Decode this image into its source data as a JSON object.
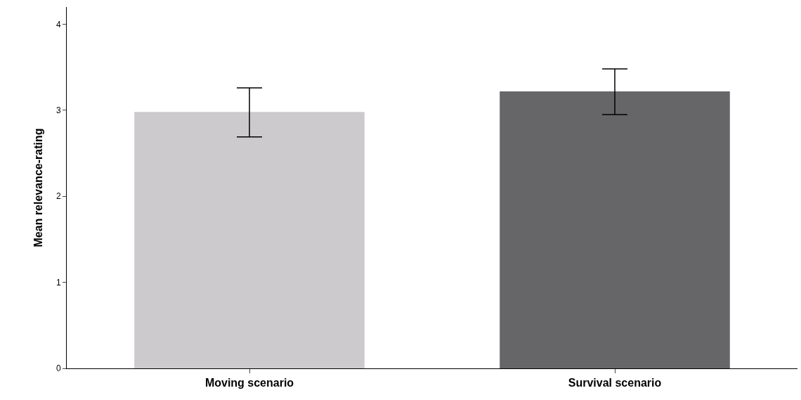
{
  "chart_data": {
    "type": "bar",
    "ylabel": "Mean relevance-rating",
    "categories": [
      "Moving scenario",
      "Survival scenario"
    ],
    "values": [
      2.98,
      3.22
    ],
    "colors": [
      "#cccacd",
      "#666567"
    ],
    "errors": [
      [
        2.69,
        3.26
      ],
      [
        2.95,
        3.48
      ]
    ],
    "ylim": [
      0,
      4.2
    ],
    "yticks": [
      0,
      1,
      2,
      3,
      4
    ]
  }
}
